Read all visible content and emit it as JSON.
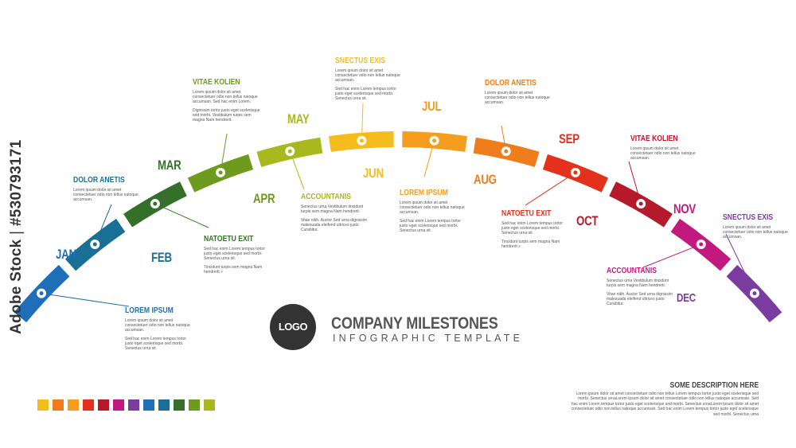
{
  "months": [
    {
      "key": "jan",
      "label": "JAN",
      "color": "#1f6fb8"
    },
    {
      "key": "feb",
      "label": "FEB",
      "color": "#1a6f95"
    },
    {
      "key": "mar",
      "label": "MAR",
      "color": "#34702a"
    },
    {
      "key": "apr",
      "label": "APR",
      "color": "#6e9a1e"
    },
    {
      "key": "may",
      "label": "MAY",
      "color": "#a8b81e"
    },
    {
      "key": "jun",
      "label": "JUN",
      "color": "#f4bc1c"
    },
    {
      "key": "jul",
      "label": "JUL",
      "color": "#f59d1e"
    },
    {
      "key": "aug",
      "label": "AUG",
      "color": "#ef7d1b"
    },
    {
      "key": "sep",
      "label": "SEP",
      "color": "#e3311c"
    },
    {
      "key": "oct",
      "label": "OCT",
      "color": "#b51a2c"
    },
    {
      "key": "nov",
      "label": "NOV",
      "color": "#c2197e"
    },
    {
      "key": "dec",
      "label": "DEC",
      "color": "#7b3c9f"
    }
  ],
  "annotations": [
    {
      "title": "LOREM IPSUM",
      "color": "#1f6fb8",
      "body1": "Lorem ipsum dolor sit amet consectetuer odio non tellus natoque accumsan.",
      "body2": "Sed hac enim Lorem tempus tortor justo eget scelerisque sed morbi. Senectus urna sit."
    },
    {
      "title": "DOLOR ANETIS",
      "color": "#1a6f95",
      "body1": "Lorem ipsum dolor sit amet consectetuer odio non tellus natoque accumsan.",
      "body2": ""
    },
    {
      "title": "NATOETU EXIT",
      "color": "#34702a",
      "body1": "Sed hac enim Lorem tempus tortor justo eget scelerisque sed morbi. Senectus urna sit.",
      "body2": "Tincidunt turpis sem magna Nam hendrerit »"
    },
    {
      "title": "VITAE KOLIEN",
      "color": "#6e9a1e",
      "body1": "Lorem ipsum dolor sit amet consectetuer odio non tellus natoque accumsan. Sed hac enim Lorem.",
      "body2": "Dignissim tortor justo eget scelerisque sed morbi. Vestibulum turpis sem magna Nam hendrerit."
    },
    {
      "title": "ACCOUNTANIS",
      "color": "#a8b81e",
      "body1": "Senectus urna Vestibulum tincidunt turpis sem magna Nam hendrerit.",
      "body2": "Vitae nibh. Auctor Sed urna dignissim malesuada eleifend ultrices justo Curabitur."
    },
    {
      "title": "SNECTUS EXIS",
      "color": "#f4bc1c",
      "body1": "Lorem ipsum dolor sit amet consectetuer odio non tellus natoque accumsan.",
      "body2": "Sed hac enim Lorem tempus tortor justo eget scelerisque sed morbi. Senectus urna sit."
    },
    {
      "title": "LOREM IPSUM",
      "color": "#f59d1e",
      "body1": "Lorem ipsum dolor sit amet consectetuer odio non tellus natoque accumsan.",
      "body2": "Sed hac enim Lorem tempus tortor justo eget scelerisque sed morbi. Senectus urna sit."
    },
    {
      "title": "DOLOR ANETIS",
      "color": "#ef7d1b",
      "body1": "Lorem ipsum dolor sit amet consectetuer odio non tellus natoque accumsan.",
      "body2": ""
    },
    {
      "title": "NATOETU EXIT",
      "color": "#e3311c",
      "body1": "Sed hac enim Lorem tempus tortor justo eget scelerisque sed morbi. Senectus urna sit.",
      "body2": "Tincidunt turpis sem magna Nam hendrerit »"
    },
    {
      "title": "VITAE KOLIEN",
      "color": "#b51a2c",
      "body1": "Lorem ipsum dolor sit amet consectetuer odio non tellus natoque accumsan.",
      "body2": ""
    },
    {
      "title": "ACCOUNTANIS",
      "color": "#c2197e",
      "body1": "Senectus urna Vestibulum tincidunt turpis sem magna Nam hendrerit.",
      "body2": "Vitae nibh. Auctor Sed urna dignissim malesuada eleifend ultrices justo Curabitur."
    },
    {
      "title": "SNECTUS EXIS",
      "color": "#7b3c9f",
      "body1": "Lorem ipsum dolor sit amet consectetuer odio non tellus natoque accumsan.",
      "body2": ""
    }
  ],
  "logo": {
    "text": "LOGO"
  },
  "heading": {
    "title": "COMPANY MILESTONES",
    "subtitle": "INFOGRAPHIC TEMPLATE"
  },
  "description": {
    "title": "SOME DESCRIPTION HERE",
    "body": "Lorem ipsum dolor sit amet consectetuer odio non tellus Lorem tempus tortor justo eget scelerisque sed morbi. Senectus urnaLorem ipsum dolor sit amet consectetuer odio non tellus natoque accumsan. Sed hac enim Lorem tempus tortor justo eget scelerisque sed morbi. Senectus urnaLorem ipsum dolor sit amet consectetuer odio non tellus natoque accumsan. Sed hac enim Lorem tempus tortor justo eget scelerisque sed morbi. Senectus urna"
  },
  "swatch_colors": [
    "#f4bc1c",
    "#ef7d1b",
    "#f59d1e",
    "#e3311c",
    "#b51a2c",
    "#c2197e",
    "#7b3c9f",
    "#1f6fb8",
    "#1a6f95",
    "#34702a",
    "#6e9a1e",
    "#a8b81e"
  ],
  "watermark": {
    "brand": "Adobe Stock",
    "separator": "|",
    "number": "#530793171"
  }
}
